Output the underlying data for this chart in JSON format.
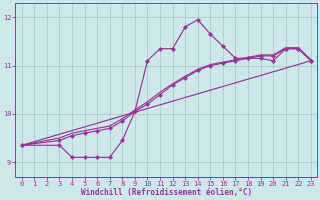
{
  "xlabel": "Windchill (Refroidissement éolien,°C)",
  "background_color": "#cce8e8",
  "grid_color": "#aacccc",
  "line_color": "#993399",
  "xlim": [
    -0.5,
    23.5
  ],
  "ylim": [
    8.7,
    12.3
  ],
  "yticks": [
    9,
    10,
    11,
    12
  ],
  "xticks": [
    0,
    1,
    2,
    3,
    4,
    5,
    6,
    7,
    8,
    9,
    10,
    11,
    12,
    13,
    14,
    15,
    16,
    17,
    18,
    19,
    20,
    21,
    22,
    23
  ],
  "curve1_x": [
    0,
    3,
    4,
    5,
    6,
    7,
    8,
    9,
    10,
    11,
    12,
    13,
    14,
    15,
    16,
    17,
    18,
    19,
    20,
    21,
    22,
    23
  ],
  "curve1_y": [
    9.35,
    9.35,
    9.1,
    9.1,
    9.1,
    9.1,
    9.45,
    10.05,
    11.1,
    11.35,
    11.35,
    11.8,
    11.95,
    11.65,
    11.4,
    11.15,
    11.15,
    11.15,
    11.1,
    11.35,
    11.35,
    11.1
  ],
  "curve2_x": [
    0,
    3,
    4,
    5,
    6,
    7,
    8,
    9,
    10,
    11,
    12,
    13,
    14,
    15,
    16,
    17,
    18,
    19,
    20,
    21,
    22,
    23
  ],
  "curve2_y": [
    9.35,
    9.45,
    9.55,
    9.6,
    9.65,
    9.7,
    9.85,
    10.05,
    10.2,
    10.4,
    10.6,
    10.75,
    10.9,
    11.0,
    11.05,
    11.1,
    11.15,
    11.2,
    11.2,
    11.35,
    11.35,
    11.1
  ],
  "curve3_x": [
    0,
    23
  ],
  "curve3_y": [
    9.35,
    11.1
  ],
  "curve4_x": [
    0,
    3,
    4,
    5,
    6,
    7,
    8,
    9,
    10,
    11,
    12,
    13,
    14,
    15,
    16,
    17,
    18,
    19,
    20,
    21,
    22,
    23
  ],
  "curve4_y": [
    9.35,
    9.5,
    9.6,
    9.65,
    9.7,
    9.75,
    9.9,
    10.08,
    10.25,
    10.45,
    10.62,
    10.78,
    10.92,
    11.02,
    11.07,
    11.12,
    11.17,
    11.22,
    11.22,
    11.37,
    11.37,
    11.12
  ]
}
